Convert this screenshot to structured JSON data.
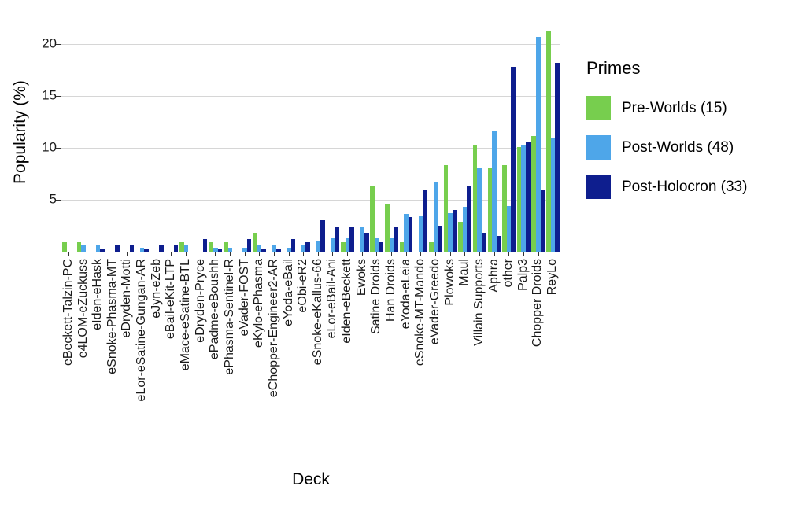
{
  "chart_data": {
    "type": "bar",
    "title": "",
    "xlabel": "Deck",
    "ylabel": "Popularity (%)",
    "legend_title": "Primes",
    "legend_position": "right",
    "grid": "horizontal-major",
    "ylim": [
      0,
      22
    ],
    "yticks": [
      5,
      10,
      15,
      20
    ],
    "categories": [
      "eBeckett-Talzin-PC",
      "e4LOM-eZuckuss",
      "eIden-eHask",
      "eSnoke-Phasma-MT",
      "eDryden-Motti",
      "eLor-eSatine-Gungan-AR",
      "eJyn-eZeb",
      "eBail-eKit-LTP",
      "eMace-eSatine-BTL",
      "eDryden-Pryce",
      "ePadme-eBoushh",
      "ePhasma-Sentinel-R",
      "eVader-FOST",
      "eKylo-ePhasma",
      "eChopper-Engineer2-AR",
      "eYoda-eBail",
      "eObi-eR2",
      "eSnoke-eKallus-66",
      "eLor-eBail-Ani",
      "eIden-eBeckett",
      "Ewoks",
      "Satine Droids",
      "Han Droids",
      "eYoda-eLeia",
      "eSnoke-MT-Mando",
      "eVader-Greedo",
      "Plowoks",
      "Maul",
      "Villain Supports",
      "Aphra",
      "other",
      "Palp3",
      "Chopper Droids",
      "ReyLo"
    ],
    "series": [
      {
        "name": "Pre-Worlds (15)",
        "color": "#77CE4E",
        "values": [
          0.9,
          0.9,
          0,
          0,
          0,
          0,
          0,
          0,
          0.9,
          0,
          0.9,
          0.9,
          0,
          1.8,
          0,
          0,
          0,
          0,
          0,
          0.9,
          0,
          6.4,
          4.6,
          0.9,
          0,
          0.9,
          8.3,
          2.9,
          10.2,
          8.1,
          8.3,
          10.1,
          11.1,
          21.2
        ]
      },
      {
        "name": "Post-Worlds (48)",
        "color": "#4EA6E9",
        "values": [
          0,
          0.7,
          0.7,
          0,
          0,
          0.35,
          0,
          0,
          0.7,
          0,
          0.35,
          0.35,
          0.35,
          0.7,
          0.7,
          0.35,
          0.7,
          1.0,
          1.4,
          1.4,
          2.4,
          1.4,
          1.4,
          3.6,
          3.4,
          6.7,
          3.7,
          4.3,
          8.0,
          11.7,
          4.4,
          10.3,
          20.7,
          11.0
        ]
      },
      {
        "name": "Post-Holocron (33)",
        "color": "#0E1E8E",
        "values": [
          0,
          0,
          0.3,
          0.6,
          0.6,
          0.3,
          0.6,
          0.6,
          0,
          1.2,
          0.3,
          0,
          1.2,
          0.3,
          0.3,
          1.2,
          0.9,
          3.0,
          2.4,
          2.4,
          1.8,
          0.9,
          2.4,
          3.3,
          5.9,
          2.5,
          4.0,
          6.4,
          1.8,
          1.5,
          17.8,
          10.5,
          5.9,
          18.2
        ]
      }
    ]
  }
}
